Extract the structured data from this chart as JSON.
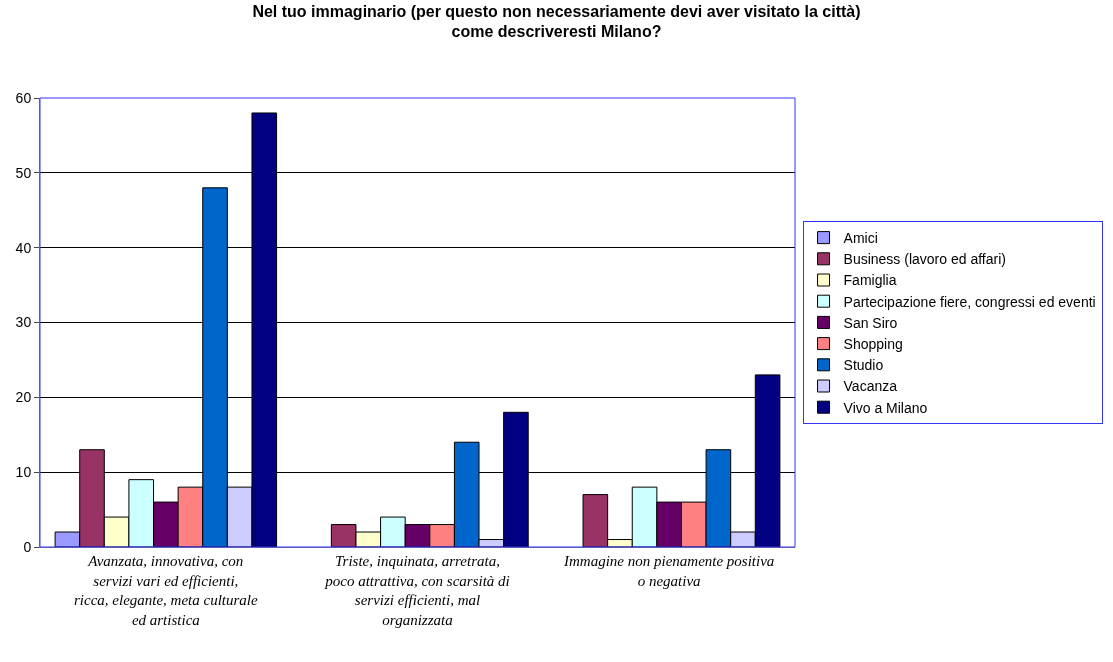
{
  "chart_data": {
    "type": "bar",
    "title": "Nel tuo immaginario (per questo non necessariamente devi aver visitato la città) come descriveresti Milano?",
    "categories": [
      "Avanzata, innovativa, con servizi vari ed efficienti, ricca, elegante, meta culturale ed artistica",
      "Triste, inquinata, arretrata, poco attrattiva, con scarsità di servizi efficienti, mal organizzata",
      "Immagine non pienamente positiva o negativa"
    ],
    "series": [
      {
        "name": "Amici",
        "color": "#9999ff",
        "values": [
          2,
          null,
          null
        ]
      },
      {
        "name": "Business (lavoro ed affari)",
        "color": "#993366",
        "values": [
          13,
          3,
          7
        ]
      },
      {
        "name": "Famiglia",
        "color": "#ffffcc",
        "values": [
          4,
          2,
          1
        ]
      },
      {
        "name": "Partecipazione fiere, congressi ed eventi",
        "color": "#ccffff",
        "values": [
          9,
          4,
          8
        ]
      },
      {
        "name": "San Siro",
        "color": "#660066",
        "values": [
          6,
          3,
          6
        ]
      },
      {
        "name": "Shopping",
        "color": "#ff8080",
        "values": [
          8,
          3,
          6
        ]
      },
      {
        "name": "Studio",
        "color": "#0066cc",
        "values": [
          48,
          14,
          13
        ]
      },
      {
        "name": "Vacanza",
        "color": "#ccccff",
        "values": [
          8,
          1,
          2
        ]
      },
      {
        "name": "Vivo a Milano",
        "color": "#000080",
        "values": [
          58,
          18,
          23
        ]
      }
    ],
    "ylim": [
      0,
      60
    ],
    "yticks": [
      0,
      10,
      20,
      30,
      40,
      50,
      60
    ],
    "grid": "y",
    "legend": "right"
  }
}
